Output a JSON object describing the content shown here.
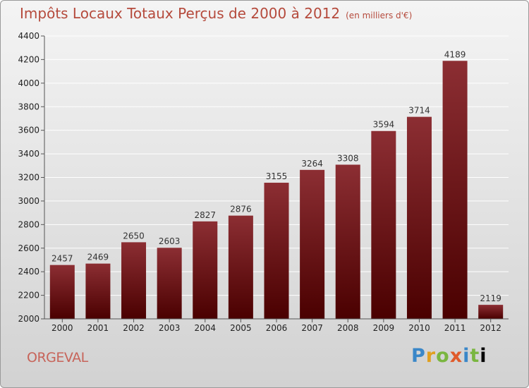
{
  "chart_data": {
    "type": "bar",
    "title": "Impôts Locaux Totaux Perçus de 2000 à 2012",
    "subtitle": "(en milliers d'€)",
    "categories": [
      "2000",
      "2001",
      "2002",
      "2003",
      "2004",
      "2005",
      "2006",
      "2007",
      "2008",
      "2009",
      "2010",
      "2011",
      "2012"
    ],
    "values": [
      2457,
      2469,
      2650,
      2603,
      2827,
      2876,
      3155,
      3264,
      3308,
      3594,
      3714,
      4189,
      2119
    ],
    "ylim": [
      2000,
      4400
    ],
    "yticks": [
      2000,
      2200,
      2400,
      2600,
      2800,
      3000,
      3200,
      3400,
      3600,
      3800,
      4000,
      4200,
      4400
    ],
    "xlabel": "",
    "ylabel": "",
    "grid": true,
    "bar_color": "#7a1418"
  },
  "footer": {
    "commune": "ORGEVAL",
    "brand": "Proxiti"
  }
}
